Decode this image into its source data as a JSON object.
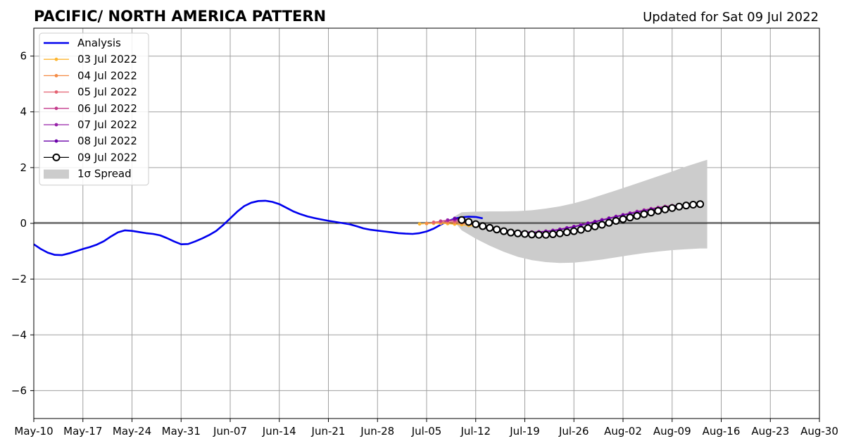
{
  "chart_data": {
    "type": "line",
    "title": "PACIFIC/ NORTH AMERICA PATTERN",
    "subtitle": "Updated for Sat 09 Jul 2022",
    "xlabel": "",
    "ylabel": "",
    "xlim": [
      "2022-05-10",
      "2022-08-30"
    ],
    "ylim": [
      -7,
      7
    ],
    "grid": true,
    "legend_position": "top-left",
    "x_tick_labels": [
      "May-10",
      "May-17",
      "May-24",
      "May-31",
      "Jun-07",
      "Jun-14",
      "Jun-21",
      "Jun-28",
      "Jul-05",
      "Jul-12",
      "Jul-19",
      "Jul-26",
      "Aug-02",
      "Aug-09",
      "Aug-16",
      "Aug-23",
      "Aug-30"
    ],
    "y_ticks": [
      -6,
      -4,
      -2,
      0,
      2,
      4,
      6
    ],
    "y_tick_labels": [
      "−6",
      "−4",
      "−2",
      "0",
      "2",
      "4",
      "6"
    ],
    "analysis": {
      "name": "Analysis",
      "color": "#0000ee",
      "points": [
        [
          "2022-05-10",
          -0.75
        ],
        [
          "2022-05-11",
          -0.92
        ],
        [
          "2022-05-12",
          -1.05
        ],
        [
          "2022-05-13",
          -1.13
        ],
        [
          "2022-05-14",
          -1.14
        ],
        [
          "2022-05-15",
          -1.08
        ],
        [
          "2022-05-16",
          -1.0
        ],
        [
          "2022-05-17",
          -0.92
        ],
        [
          "2022-05-18",
          -0.85
        ],
        [
          "2022-05-19",
          -0.76
        ],
        [
          "2022-05-20",
          -0.64
        ],
        [
          "2022-05-21",
          -0.47
        ],
        [
          "2022-05-22",
          -0.32
        ],
        [
          "2022-05-23",
          -0.25
        ],
        [
          "2022-05-24",
          -0.27
        ],
        [
          "2022-05-25",
          -0.31
        ],
        [
          "2022-05-26",
          -0.35
        ],
        [
          "2022-05-27",
          -0.38
        ],
        [
          "2022-05-28",
          -0.43
        ],
        [
          "2022-05-29",
          -0.53
        ],
        [
          "2022-05-30",
          -0.65
        ],
        [
          "2022-05-31",
          -0.75
        ],
        [
          "2022-06-01",
          -0.74
        ],
        [
          "2022-06-02",
          -0.65
        ],
        [
          "2022-06-03",
          -0.54
        ],
        [
          "2022-06-04",
          -0.42
        ],
        [
          "2022-06-05",
          -0.27
        ],
        [
          "2022-06-06",
          -0.06
        ],
        [
          "2022-06-07",
          0.18
        ],
        [
          "2022-06-08",
          0.42
        ],
        [
          "2022-06-09",
          0.62
        ],
        [
          "2022-06-10",
          0.74
        ],
        [
          "2022-06-11",
          0.8
        ],
        [
          "2022-06-12",
          0.81
        ],
        [
          "2022-06-13",
          0.77
        ],
        [
          "2022-06-14",
          0.69
        ],
        [
          "2022-06-15",
          0.56
        ],
        [
          "2022-06-16",
          0.43
        ],
        [
          "2022-06-17",
          0.33
        ],
        [
          "2022-06-18",
          0.25
        ],
        [
          "2022-06-19",
          0.19
        ],
        [
          "2022-06-20",
          0.14
        ],
        [
          "2022-06-21",
          0.09
        ],
        [
          "2022-06-22",
          0.05
        ],
        [
          "2022-06-23",
          0.01
        ],
        [
          "2022-06-24",
          -0.03
        ],
        [
          "2022-06-25",
          -0.1
        ],
        [
          "2022-06-26",
          -0.18
        ],
        [
          "2022-06-27",
          -0.23
        ],
        [
          "2022-06-28",
          -0.26
        ],
        [
          "2022-06-29",
          -0.29
        ],
        [
          "2022-06-30",
          -0.32
        ],
        [
          "2022-07-01",
          -0.35
        ],
        [
          "2022-07-02",
          -0.37
        ],
        [
          "2022-07-03",
          -0.38
        ],
        [
          "2022-07-04",
          -0.35
        ],
        [
          "2022-07-05",
          -0.29
        ],
        [
          "2022-07-06",
          -0.19
        ],
        [
          "2022-07-07",
          -0.05
        ],
        [
          "2022-07-08",
          0.08
        ],
        [
          "2022-07-09",
          0.17
        ],
        [
          "2022-07-10",
          0.22
        ],
        [
          "2022-07-11",
          0.24
        ],
        [
          "2022-07-12",
          0.23
        ],
        [
          "2022-07-13",
          0.18
        ]
      ]
    },
    "series": [
      {
        "name": "03 Jul 2022",
        "color": "#fdb631",
        "points": [
          [
            "2022-07-04",
            -0.02
          ],
          [
            "2022-07-05",
            -0.01
          ],
          [
            "2022-07-06",
            0.0
          ],
          [
            "2022-07-07",
            0.0
          ],
          [
            "2022-07-08",
            -0.01
          ],
          [
            "2022-07-09",
            -0.03
          ],
          [
            "2022-07-10",
            -0.05
          ],
          [
            "2022-07-11",
            -0.08
          ],
          [
            "2022-07-12",
            -0.11
          ],
          [
            "2022-07-13",
            -0.14
          ],
          [
            "2022-07-14",
            -0.17
          ],
          [
            "2022-07-15",
            -0.2
          ]
        ]
      },
      {
        "name": "04 Jul 2022",
        "color": "#f48b45",
        "points": [
          [
            "2022-07-05",
            0.0
          ],
          [
            "2022-07-06",
            0.02
          ],
          [
            "2022-07-07",
            0.03
          ],
          [
            "2022-07-08",
            0.03
          ],
          [
            "2022-07-09",
            0.02
          ],
          [
            "2022-07-10",
            0.0
          ],
          [
            "2022-07-11",
            -0.03
          ],
          [
            "2022-07-12",
            -0.07
          ],
          [
            "2022-07-13",
            -0.11
          ],
          [
            "2022-07-14",
            -0.15
          ],
          [
            "2022-07-15",
            -0.19
          ],
          [
            "2022-07-16",
            -0.23
          ]
        ]
      },
      {
        "name": "05 Jul 2022",
        "color": "#e46070",
        "points": [
          [
            "2022-07-06",
            0.04
          ],
          [
            "2022-07-07",
            0.07
          ],
          [
            "2022-07-08",
            0.08
          ],
          [
            "2022-07-09",
            0.07
          ],
          [
            "2022-07-10",
            0.04
          ],
          [
            "2022-07-11",
            0.0
          ],
          [
            "2022-07-12",
            -0.05
          ],
          [
            "2022-07-13",
            -0.1
          ],
          [
            "2022-07-14",
            -0.15
          ],
          [
            "2022-07-15",
            -0.2
          ],
          [
            "2022-07-16",
            -0.24
          ],
          [
            "2022-07-17",
            -0.27
          ]
        ]
      },
      {
        "name": "06 Jul 2022",
        "color": "#c43b8c",
        "points": [
          [
            "2022-07-07",
            0.08
          ],
          [
            "2022-07-08",
            0.11
          ],
          [
            "2022-07-09",
            0.12
          ],
          [
            "2022-07-10",
            0.1
          ],
          [
            "2022-07-11",
            0.06
          ],
          [
            "2022-07-12",
            0.0
          ],
          [
            "2022-07-13",
            -0.07
          ],
          [
            "2022-07-14",
            -0.13
          ],
          [
            "2022-07-15",
            -0.19
          ],
          [
            "2022-07-16",
            -0.24
          ],
          [
            "2022-07-17",
            -0.28
          ],
          [
            "2022-07-18",
            -0.3
          ],
          [
            "2022-07-19",
            -0.31
          ],
          [
            "2022-07-20",
            -0.31
          ],
          [
            "2022-07-21",
            -0.3
          ],
          [
            "2022-07-22",
            -0.28
          ],
          [
            "2022-07-23",
            -0.25
          ],
          [
            "2022-07-24",
            -0.21
          ],
          [
            "2022-07-25",
            -0.16
          ],
          [
            "2022-07-26",
            -0.11
          ],
          [
            "2022-07-27",
            -0.05
          ],
          [
            "2022-07-28",
            0.01
          ],
          [
            "2022-07-29",
            0.07
          ],
          [
            "2022-07-30",
            0.13
          ],
          [
            "2022-07-31",
            0.19
          ],
          [
            "2022-08-01",
            0.25
          ],
          [
            "2022-08-02",
            0.31
          ],
          [
            "2022-08-03",
            0.37
          ],
          [
            "2022-08-04",
            0.43
          ],
          [
            "2022-08-05",
            0.48
          ],
          [
            "2022-08-06",
            0.53
          ],
          [
            "2022-08-07",
            0.57
          ],
          [
            "2022-08-08",
            0.61
          ],
          [
            "2022-08-09",
            0.64
          ]
        ]
      },
      {
        "name": "07 Jul 2022",
        "color": "#9621a8",
        "points": [
          [
            "2022-07-08",
            0.12
          ],
          [
            "2022-07-09",
            0.14
          ],
          [
            "2022-07-10",
            0.12
          ],
          [
            "2022-07-11",
            0.07
          ],
          [
            "2022-07-12",
            0.0
          ],
          [
            "2022-07-13",
            -0.07
          ],
          [
            "2022-07-14",
            -0.14
          ],
          [
            "2022-07-15",
            -0.2
          ],
          [
            "2022-07-16",
            -0.25
          ],
          [
            "2022-07-17",
            -0.28
          ],
          [
            "2022-07-18",
            -0.3
          ],
          [
            "2022-07-19",
            -0.31
          ],
          [
            "2022-07-20",
            -0.31
          ],
          [
            "2022-07-21",
            -0.3
          ],
          [
            "2022-07-22",
            -0.28
          ],
          [
            "2022-07-23",
            -0.25
          ],
          [
            "2022-07-24",
            -0.21
          ],
          [
            "2022-07-25",
            -0.16
          ],
          [
            "2022-07-26",
            -0.11
          ],
          [
            "2022-07-27",
            -0.05
          ],
          [
            "2022-07-28",
            0.01
          ],
          [
            "2022-07-29",
            0.07
          ],
          [
            "2022-07-30",
            0.13
          ],
          [
            "2022-07-31",
            0.19
          ],
          [
            "2022-08-01",
            0.25
          ],
          [
            "2022-08-02",
            0.31
          ],
          [
            "2022-08-03",
            0.37
          ],
          [
            "2022-08-04",
            0.42
          ],
          [
            "2022-08-05",
            0.47
          ],
          [
            "2022-08-06",
            0.52
          ],
          [
            "2022-08-07",
            0.56
          ],
          [
            "2022-08-08",
            0.6
          ],
          [
            "2022-08-09",
            0.63
          ],
          [
            "2022-08-10",
            0.66
          ]
        ]
      },
      {
        "name": "08 Jul 2022",
        "color": "#6a00a8",
        "points": [
          [
            "2022-07-09",
            0.18
          ],
          [
            "2022-07-10",
            0.15
          ],
          [
            "2022-07-11",
            0.09
          ],
          [
            "2022-07-12",
            0.01
          ],
          [
            "2022-07-13",
            -0.07
          ],
          [
            "2022-07-14",
            -0.14
          ],
          [
            "2022-07-15",
            -0.21
          ],
          [
            "2022-07-16",
            -0.26
          ],
          [
            "2022-07-17",
            -0.3
          ],
          [
            "2022-07-18",
            -0.32
          ],
          [
            "2022-07-19",
            -0.33
          ],
          [
            "2022-07-20",
            -0.33
          ],
          [
            "2022-07-21",
            -0.32
          ],
          [
            "2022-07-22",
            -0.3
          ],
          [
            "2022-07-23",
            -0.27
          ],
          [
            "2022-07-24",
            -0.23
          ],
          [
            "2022-07-25",
            -0.18
          ],
          [
            "2022-07-26",
            -0.13
          ],
          [
            "2022-07-27",
            -0.07
          ],
          [
            "2022-07-28",
            -0.01
          ],
          [
            "2022-07-29",
            0.05
          ],
          [
            "2022-07-30",
            0.11
          ],
          [
            "2022-07-31",
            0.17
          ],
          [
            "2022-08-01",
            0.23
          ],
          [
            "2022-08-02",
            0.29
          ],
          [
            "2022-08-03",
            0.34
          ],
          [
            "2022-08-04",
            0.39
          ],
          [
            "2022-08-05",
            0.44
          ],
          [
            "2022-08-06",
            0.49
          ],
          [
            "2022-08-07",
            0.53
          ],
          [
            "2022-08-08",
            0.57
          ],
          [
            "2022-08-09",
            0.6
          ],
          [
            "2022-08-10",
            0.63
          ],
          [
            "2022-08-11",
            0.66
          ]
        ]
      },
      {
        "name": "09 Jul 2022",
        "color": "#000000",
        "points": [
          [
            "2022-07-10",
            0.12
          ],
          [
            "2022-07-11",
            0.05
          ],
          [
            "2022-07-12",
            -0.03
          ],
          [
            "2022-07-13",
            -0.1
          ],
          [
            "2022-07-14",
            -0.16
          ],
          [
            "2022-07-15",
            -0.22
          ],
          [
            "2022-07-16",
            -0.28
          ],
          [
            "2022-07-17",
            -0.33
          ],
          [
            "2022-07-18",
            -0.36
          ],
          [
            "2022-07-19",
            -0.38
          ],
          [
            "2022-07-20",
            -0.4
          ],
          [
            "2022-07-21",
            -0.41
          ],
          [
            "2022-07-22",
            -0.41
          ],
          [
            "2022-07-23",
            -0.39
          ],
          [
            "2022-07-24",
            -0.36
          ],
          [
            "2022-07-25",
            -0.32
          ],
          [
            "2022-07-26",
            -0.28
          ],
          [
            "2022-07-27",
            -0.23
          ],
          [
            "2022-07-28",
            -0.17
          ],
          [
            "2022-07-29",
            -0.11
          ],
          [
            "2022-07-30",
            -0.05
          ],
          [
            "2022-07-31",
            0.02
          ],
          [
            "2022-08-01",
            0.09
          ],
          [
            "2022-08-02",
            0.15
          ],
          [
            "2022-08-03",
            0.21
          ],
          [
            "2022-08-04",
            0.27
          ],
          [
            "2022-08-05",
            0.33
          ],
          [
            "2022-08-06",
            0.39
          ],
          [
            "2022-08-07",
            0.45
          ],
          [
            "2022-08-08",
            0.5
          ],
          [
            "2022-08-09",
            0.55
          ],
          [
            "2022-08-10",
            0.6
          ],
          [
            "2022-08-11",
            0.64
          ],
          [
            "2022-08-12",
            0.67
          ],
          [
            "2022-08-13",
            0.69
          ]
        ]
      }
    ],
    "spread": {
      "name": "1σ Spread",
      "color": "#cccccc",
      "points": [
        [
          "2022-07-09",
          0.05,
          0.25
        ],
        [
          "2022-07-10",
          -0.25,
          0.4
        ],
        [
          "2022-07-12",
          -0.55,
          0.42
        ],
        [
          "2022-07-14",
          -0.8,
          0.43
        ],
        [
          "2022-07-16",
          -1.02,
          0.43
        ],
        [
          "2022-07-18",
          -1.2,
          0.44
        ],
        [
          "2022-07-20",
          -1.32,
          0.47
        ],
        [
          "2022-07-22",
          -1.39,
          0.53
        ],
        [
          "2022-07-24",
          -1.42,
          0.61
        ],
        [
          "2022-07-26",
          -1.41,
          0.72
        ],
        [
          "2022-07-28",
          -1.36,
          0.86
        ],
        [
          "2022-07-30",
          -1.3,
          1.02
        ],
        [
          "2022-08-01",
          -1.22,
          1.18
        ],
        [
          "2022-08-03",
          -1.14,
          1.35
        ],
        [
          "2022-08-05",
          -1.07,
          1.52
        ],
        [
          "2022-08-07",
          -1.01,
          1.69
        ],
        [
          "2022-08-09",
          -0.96,
          1.86
        ],
        [
          "2022-08-11",
          -0.93,
          2.04
        ],
        [
          "2022-08-13",
          -0.9,
          2.2
        ],
        [
          "2022-08-14",
          -0.9,
          2.28
        ]
      ]
    }
  }
}
